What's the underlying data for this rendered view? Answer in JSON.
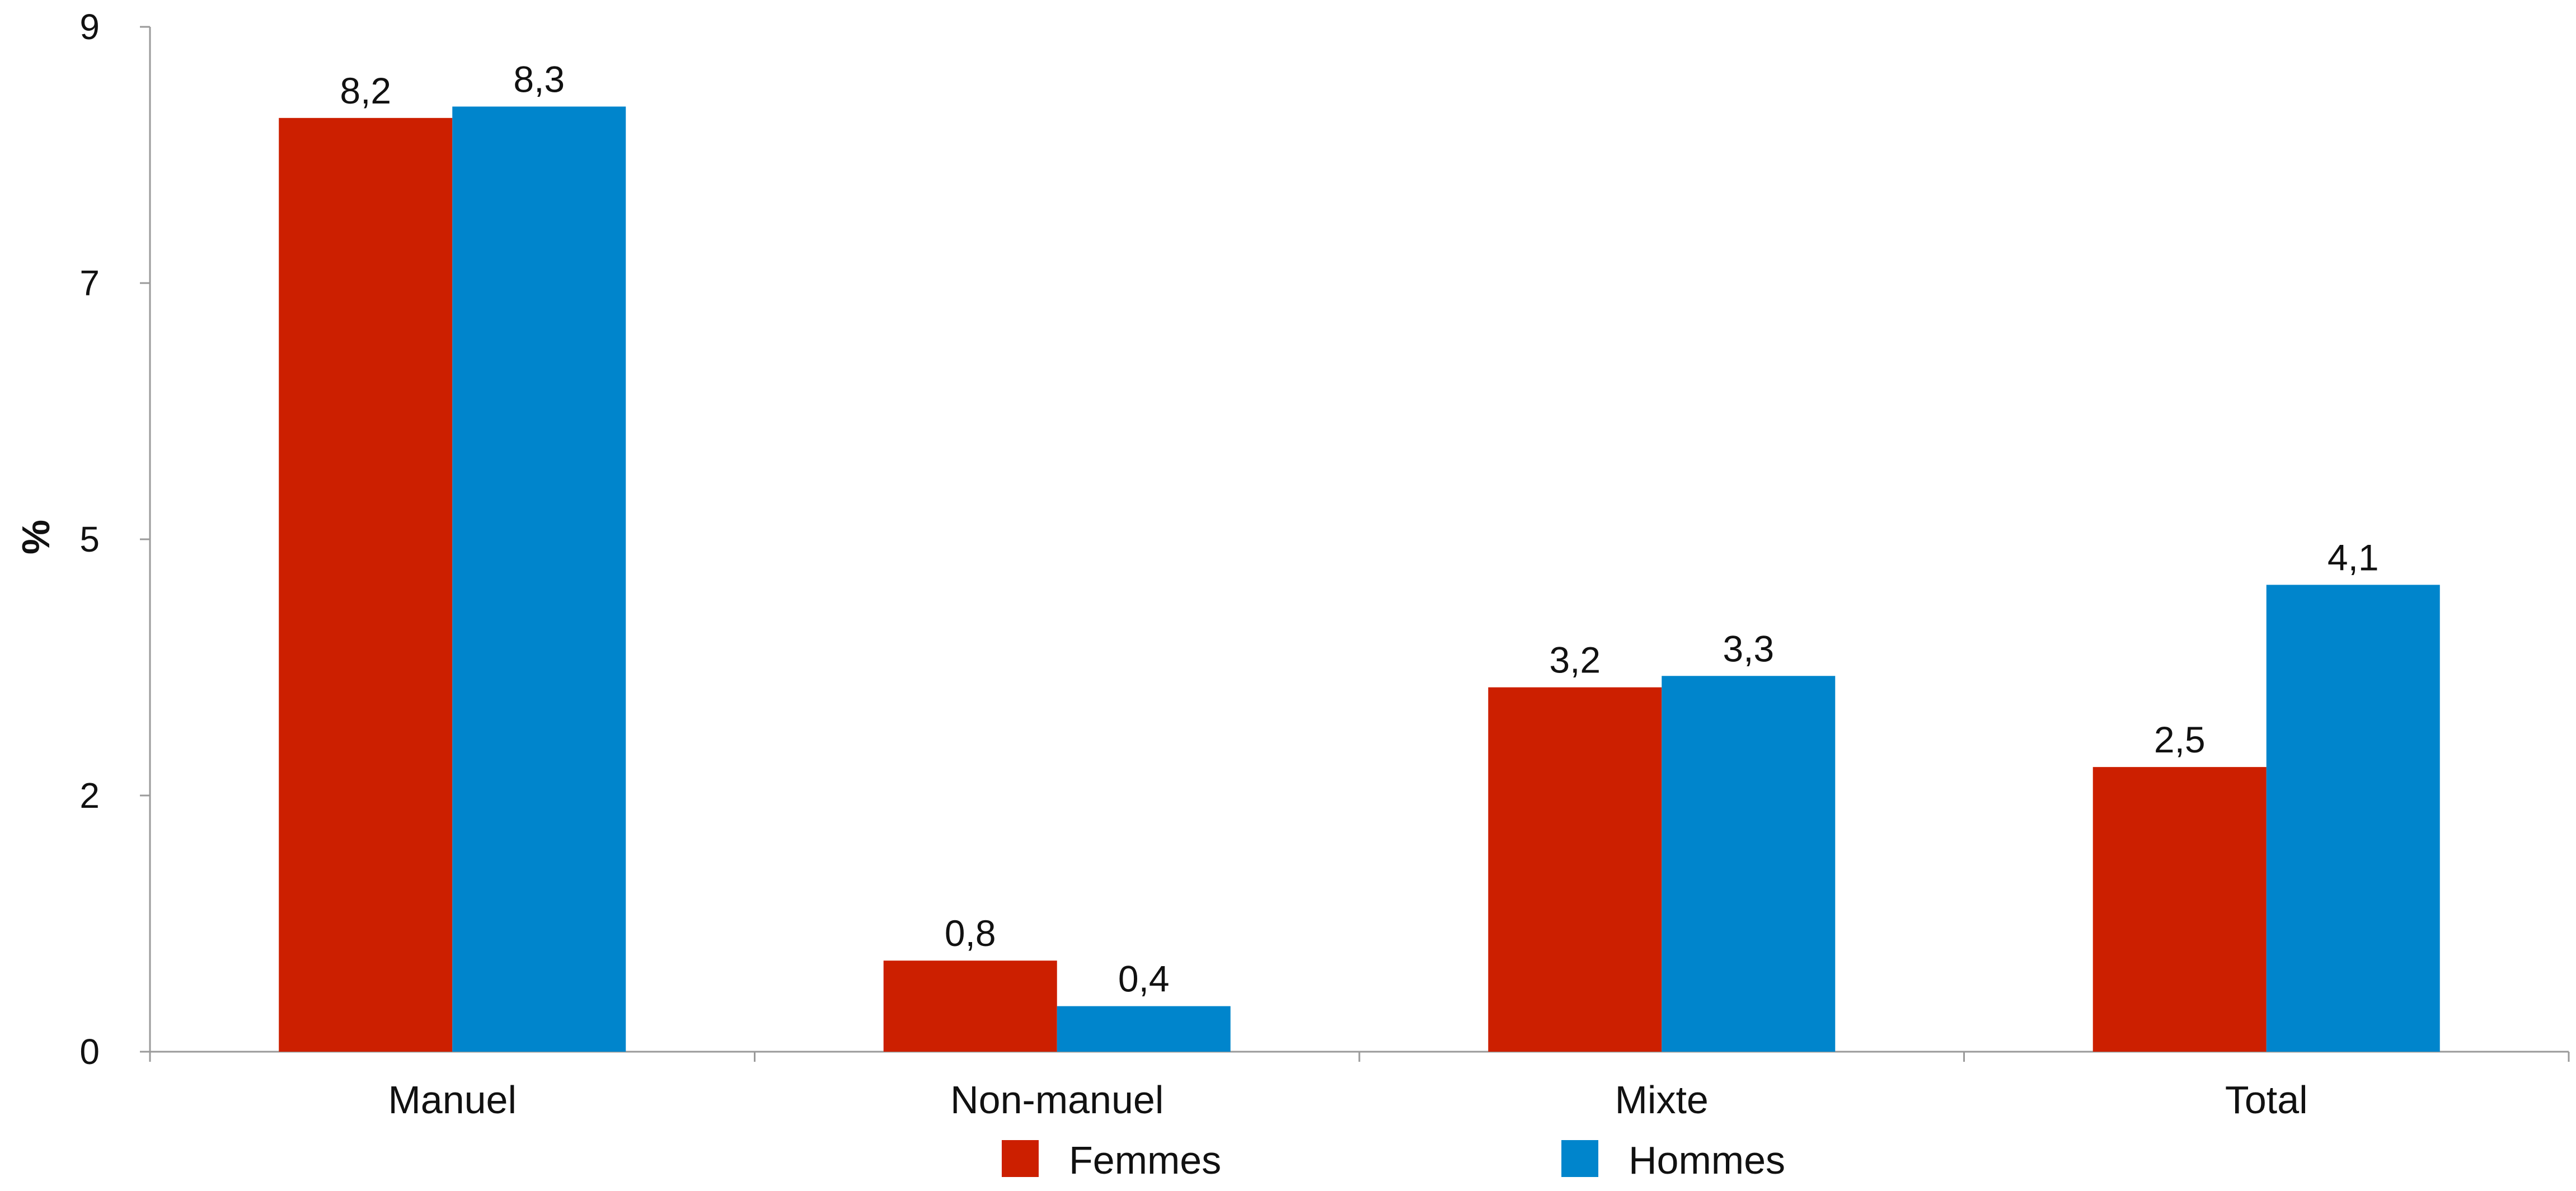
{
  "chart_data": {
    "type": "bar",
    "title": "",
    "xlabel": "",
    "ylabel": "%",
    "categories": [
      "Manuel",
      "Non-manuel",
      "Mixte",
      "Total"
    ],
    "series": [
      {
        "name": "Femmes",
        "color": "#cc1f00",
        "values": [
          8.2,
          0.8,
          3.2,
          2.5
        ],
        "labels": [
          "8,2",
          "0,8",
          "3,2",
          "2,5"
        ]
      },
      {
        "name": "Hommes",
        "color": "#0085cc",
        "values": [
          8.3,
          0.4,
          3.3,
          4.1
        ],
        "labels": [
          "8,3",
          "0,4",
          "3,3",
          "4,1"
        ]
      }
    ],
    "yticks": [
      {
        "label": "0",
        "value": 0
      },
      {
        "label": "2",
        "value": 2.25
      },
      {
        "label": "5",
        "value": 4.5
      },
      {
        "label": "7",
        "value": 6.75
      },
      {
        "label": "9",
        "value": 9
      }
    ],
    "ylim": [
      0,
      9
    ],
    "grid": false,
    "legend_position": "bottom-center"
  }
}
